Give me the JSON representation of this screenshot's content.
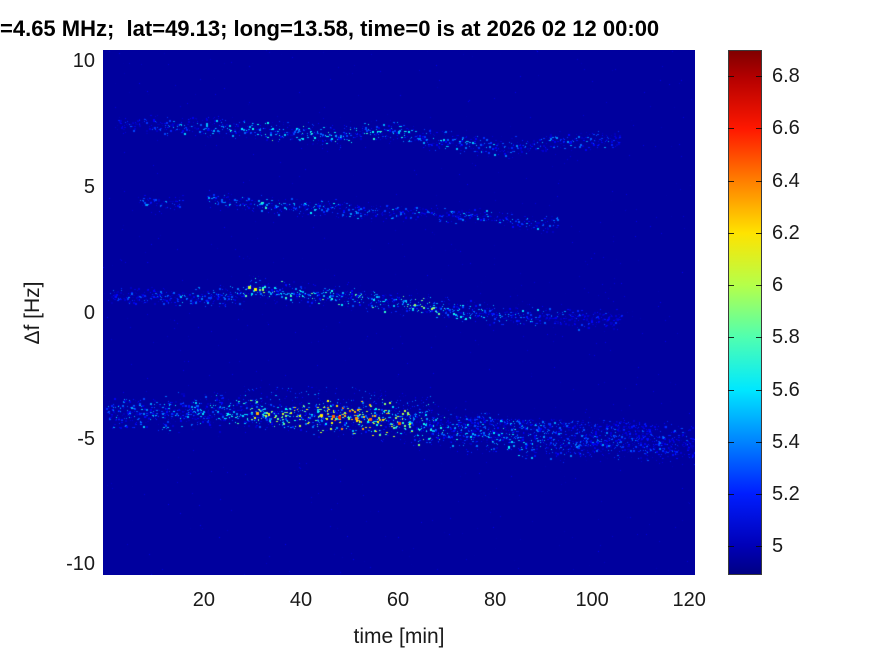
{
  "title": "=4.65 MHz;  lat=49.13; long=13.58, time=0 is at 2026 02 12 00:00",
  "colorbar": {
    "range": [
      4.89,
      6.9
    ],
    "ticks": [
      "5",
      "5.2",
      "5.4",
      "5.6",
      "5.8",
      "6",
      "6.2",
      "6.4",
      "6.6",
      "6.8"
    ],
    "tick_values": [
      5,
      5.2,
      5.4,
      5.6,
      5.8,
      6,
      6.2,
      6.4,
      6.6,
      6.8
    ],
    "colormap": "jet",
    "stops": [
      {
        "value": 4.89,
        "color": "#000084"
      },
      {
        "value": 5.0,
        "color": "#0000b8"
      },
      {
        "value": 5.2,
        "color": "#001eff"
      },
      {
        "value": 5.4,
        "color": "#0084ff"
      },
      {
        "value": 5.6,
        "color": "#00e8ff"
      },
      {
        "value": 5.8,
        "color": "#50ffb0"
      },
      {
        "value": 6.0,
        "color": "#b5ff4a"
      },
      {
        "value": 6.2,
        "color": "#ffe300"
      },
      {
        "value": 6.4,
        "color": "#ff7f00"
      },
      {
        "value": 6.6,
        "color": "#ff1800"
      },
      {
        "value": 6.8,
        "color": "#b30000"
      },
      {
        "value": 6.9,
        "color": "#800000"
      }
    ]
  },
  "chart_data": {
    "type": "heatmap",
    "title": "=4.65 MHz;  lat=49.13; long=13.58, time=0 is at 2026 02 12 00:00",
    "xlabel": "time [min]",
    "ylabel": "Δf [Hz]",
    "x_range": [
      -0.8,
      121.2
    ],
    "y_range": [
      -10.42,
      10.45
    ],
    "x_ticks": [
      20,
      40,
      60,
      80,
      100,
      120
    ],
    "y_ticks": [
      10,
      5,
      0,
      -5,
      -10
    ],
    "color_range": [
      4.89,
      6.9
    ],
    "colormap": "jet",
    "grid": false,
    "background_value": 4.95,
    "description": "Doppler-shift spectrogram: four speckled multipath traces near +7, +4, +0.5 and -4.3 Hz drifting downward over 0-121 min; strongest trace near -4.3 Hz peaks ~6.6 around t=48 min.",
    "noise_dots": 750,
    "traces": [
      {
        "name": "trace-plus7Hz",
        "path": [
          [
            2,
            7.5
          ],
          [
            12,
            7.45
          ],
          [
            25,
            7.35
          ],
          [
            40,
            7.15
          ],
          [
            49,
            7.0
          ],
          [
            53,
            7.3
          ],
          [
            60,
            7.22
          ],
          [
            65,
            6.9
          ],
          [
            71,
            6.75
          ],
          [
            81,
            6.55
          ],
          [
            87,
            6.6
          ],
          [
            93,
            6.8
          ],
          [
            102,
            6.88
          ],
          [
            106,
            6.95
          ]
        ],
        "profile": [
          [
            2,
            5.3
          ],
          [
            15,
            5.45
          ],
          [
            25,
            5.6
          ],
          [
            35,
            5.78
          ],
          [
            45,
            5.8
          ],
          [
            55,
            5.78
          ],
          [
            62,
            5.7
          ],
          [
            70,
            5.62
          ],
          [
            78,
            5.55
          ],
          [
            85,
            5.5
          ],
          [
            93,
            5.55
          ],
          [
            100,
            5.4
          ],
          [
            106,
            5.3
          ]
        ],
        "spread": 0.17,
        "density": 1.0,
        "clouds": [
          [
            20,
            75,
            -0.5,
            0.5,
            0.22,
            4.97,
            5.3
          ]
        ]
      },
      {
        "name": "trace-plus4Hz",
        "path": [
          [
            7,
            4.4
          ],
          [
            15,
            4.37
          ],
          [
            21,
            4.5
          ],
          [
            31,
            4.3
          ],
          [
            44,
            4.17
          ],
          [
            58,
            3.98
          ],
          [
            67,
            3.94
          ],
          [
            75,
            3.86
          ],
          [
            85,
            3.6
          ],
          [
            93,
            3.54
          ]
        ],
        "profile": [
          [
            7,
            5.5
          ],
          [
            13,
            5.35
          ],
          [
            21,
            5.55
          ],
          [
            30,
            5.65
          ],
          [
            38,
            5.7
          ],
          [
            46,
            5.68
          ],
          [
            52,
            5.55
          ],
          [
            58,
            5.4
          ],
          [
            64,
            5.45
          ],
          [
            70,
            5.35
          ],
          [
            76,
            5.5
          ],
          [
            84,
            5.5
          ],
          [
            90,
            5.4
          ],
          [
            93,
            5.25
          ]
        ],
        "spread": 0.14,
        "density": 0.9,
        "gaps": [
          [
            15.5,
            20.5
          ]
        ],
        "clouds": [
          [
            21,
            60,
            -0.4,
            0.4,
            0.18,
            4.97,
            5.25
          ]
        ]
      },
      {
        "name": "trace-0Hz",
        "path": [
          [
            0.6,
            0.68
          ],
          [
            9,
            0.64
          ],
          [
            19,
            0.6
          ],
          [
            27,
            0.68
          ],
          [
            30,
            1.0
          ],
          [
            34,
            0.87
          ],
          [
            42,
            0.72
          ],
          [
            50,
            0.6
          ],
          [
            58,
            0.44
          ],
          [
            65,
            0.28
          ],
          [
            71,
            0.12
          ],
          [
            77,
            0.0
          ],
          [
            85,
            -0.16
          ],
          [
            93,
            -0.24
          ],
          [
            106,
            -0.28
          ]
        ],
        "profile": [
          [
            0.6,
            5.3
          ],
          [
            10,
            5.4
          ],
          [
            20,
            5.45
          ],
          [
            27,
            5.55
          ],
          [
            29,
            6.0
          ],
          [
            31,
            6.1
          ],
          [
            34,
            5.9
          ],
          [
            40,
            5.75
          ],
          [
            46,
            5.8
          ],
          [
            52,
            5.85
          ],
          [
            58,
            5.8
          ],
          [
            64,
            5.95
          ],
          [
            68,
            5.9
          ],
          [
            72,
            5.85
          ],
          [
            78,
            5.7
          ],
          [
            84,
            5.6
          ],
          [
            90,
            5.5
          ],
          [
            96,
            5.3
          ],
          [
            102,
            5.2
          ],
          [
            106,
            5.1
          ]
        ],
        "spread": 0.17,
        "density": 1.2,
        "clouds": [
          [
            20,
            80,
            -0.5,
            0.5,
            0.22,
            4.97,
            5.3
          ]
        ]
      },
      {
        "name": "trace-minus4Hz-main",
        "path": [
          [
            0,
            -3.94
          ],
          [
            7,
            -4.0
          ],
          [
            19,
            -3.94
          ],
          [
            29,
            -4.0
          ],
          [
            40,
            -4.1
          ],
          [
            48,
            -4.13
          ],
          [
            56,
            -4.25
          ],
          [
            65,
            -4.45
          ],
          [
            73,
            -4.7
          ],
          [
            81,
            -4.9
          ],
          [
            89,
            -5.05
          ],
          [
            98,
            -5.1
          ],
          [
            106,
            -5.1
          ],
          [
            114,
            -5.17
          ],
          [
            121,
            -5.2
          ]
        ],
        "profile": [
          [
            0,
            5.5
          ],
          [
            8,
            5.55
          ],
          [
            15,
            5.6
          ],
          [
            22,
            5.65
          ],
          [
            28,
            5.9
          ],
          [
            34,
            6.15
          ],
          [
            40,
            6.2
          ],
          [
            44,
            6.3
          ],
          [
            48,
            6.55
          ],
          [
            52,
            6.4
          ],
          [
            56,
            6.3
          ],
          [
            60,
            6.1
          ],
          [
            64,
            5.95
          ],
          [
            68,
            5.8
          ],
          [
            72,
            5.7
          ],
          [
            78,
            5.6
          ],
          [
            84,
            5.65
          ],
          [
            90,
            5.5
          ],
          [
            96,
            5.4
          ],
          [
            102,
            5.45
          ],
          [
            108,
            5.35
          ],
          [
            114,
            5.3
          ],
          [
            121,
            5.2
          ]
        ],
        "spread": 0.3,
        "density": 2.4,
        "clouds": [
          [
            28,
            68,
            0.1,
            1.2,
            0.55,
            4.97,
            5.45
          ],
          [
            56,
            121,
            -0.9,
            0.9,
            0.4,
            4.97,
            5.3
          ],
          [
            5,
            28,
            -0.5,
            0.5,
            0.25,
            4.97,
            5.3
          ]
        ]
      },
      {
        "name": "trace-minus4Hz-echo",
        "path": [
          [
            72,
            -4.2
          ],
          [
            81,
            -4.35
          ],
          [
            90,
            -4.45
          ],
          [
            100,
            -4.5
          ],
          [
            112,
            -4.6
          ]
        ],
        "profile": [
          [
            72,
            5.4
          ],
          [
            80,
            5.45
          ],
          [
            90,
            5.4
          ],
          [
            100,
            5.3
          ],
          [
            112,
            5.2
          ]
        ],
        "spread": 0.12,
        "density": 0.8
      }
    ],
    "hot_spots": [
      {
        "t": 29.3,
        "f": 0.99,
        "v": 6.05,
        "size": 3
      },
      {
        "t": 30.6,
        "f": 0.92,
        "v": 6.15,
        "size": 3
      },
      {
        "t": 31.6,
        "f": 0.9,
        "v": 5.9,
        "size": 2
      },
      {
        "t": 63.5,
        "f": 0.3,
        "v": 6.0,
        "size": 2
      },
      {
        "t": 67.5,
        "f": 0.16,
        "v": 5.9,
        "size": 2
      },
      {
        "t": 31.0,
        "f": -4.0,
        "v": 6.3,
        "size": 3
      },
      {
        "t": 33.5,
        "f": -4.05,
        "v": 6.2,
        "size": 2
      },
      {
        "t": 36.5,
        "f": -4.05,
        "v": 6.05,
        "size": 2
      },
      {
        "t": 40.0,
        "f": -4.1,
        "v": 6.1,
        "size": 2
      },
      {
        "t": 44.2,
        "f": -4.08,
        "v": 6.2,
        "size": 3
      },
      {
        "t": 46.8,
        "f": -4.12,
        "v": 6.45,
        "size": 3
      },
      {
        "t": 48.0,
        "f": -4.16,
        "v": 6.6,
        "size": 3
      },
      {
        "t": 49.2,
        "f": -4.1,
        "v": 6.3,
        "size": 2
      },
      {
        "t": 51.5,
        "f": -4.2,
        "v": 6.35,
        "size": 3
      },
      {
        "t": 54.3,
        "f": -4.22,
        "v": 6.45,
        "size": 3
      },
      {
        "t": 57.0,
        "f": -4.28,
        "v": 6.2,
        "size": 2
      },
      {
        "t": 60.2,
        "f": -4.4,
        "v": 6.5,
        "size": 3
      },
      {
        "t": 62.5,
        "f": -4.42,
        "v": 6.1,
        "size": 2
      }
    ]
  }
}
